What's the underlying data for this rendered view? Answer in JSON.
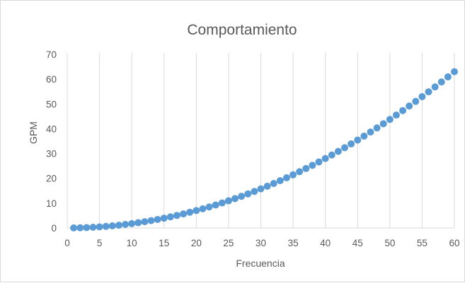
{
  "chart_data": {
    "type": "scatter",
    "title": "Comportamiento",
    "xlabel": "Frecuencia",
    "ylabel": "GPM",
    "xlim": [
      0,
      60
    ],
    "ylim": [
      0,
      70
    ],
    "x_ticks": [
      "0",
      "5",
      "10",
      "15",
      "20",
      "25",
      "30",
      "35",
      "40",
      "45",
      "50",
      "55",
      "60"
    ],
    "y_ticks": [
      "0",
      "10",
      "20",
      "30",
      "40",
      "50",
      "60",
      "70"
    ],
    "grid": "vertical",
    "legend": "none",
    "marker_color": "#5b9bd5",
    "x": [
      1,
      2,
      3,
      4,
      5,
      6,
      7,
      8,
      9,
      10,
      11,
      12,
      13,
      14,
      15,
      16,
      17,
      18,
      19,
      20,
      21,
      22,
      23,
      24,
      25,
      26,
      27,
      28,
      29,
      30,
      31,
      32,
      33,
      34,
      35,
      36,
      37,
      38,
      39,
      40,
      41,
      42,
      43,
      44,
      45,
      46,
      47,
      48,
      49,
      50,
      51,
      52,
      53,
      54,
      55,
      56,
      57,
      58,
      59,
      60
    ],
    "y": [
      0.02,
      0.07,
      0.16,
      0.28,
      0.44,
      0.63,
      0.86,
      1.12,
      1.42,
      1.75,
      2.12,
      2.52,
      2.96,
      3.43,
      3.94,
      4.48,
      5.06,
      5.67,
      6.32,
      7.0,
      7.72,
      8.47,
      9.26,
      10.08,
      10.94,
      11.83,
      12.76,
      13.72,
      14.72,
      15.75,
      16.82,
      17.92,
      19.06,
      20.23,
      21.44,
      22.68,
      23.96,
      25.27,
      26.62,
      28.0,
      29.42,
      30.87,
      32.36,
      33.88,
      35.44,
      37.03,
      38.66,
      40.32,
      42.02,
      43.75,
      45.52,
      47.32,
      49.16,
      51.03,
      52.94,
      54.88,
      56.86,
      58.87,
      60.92,
      63.0
    ]
  }
}
